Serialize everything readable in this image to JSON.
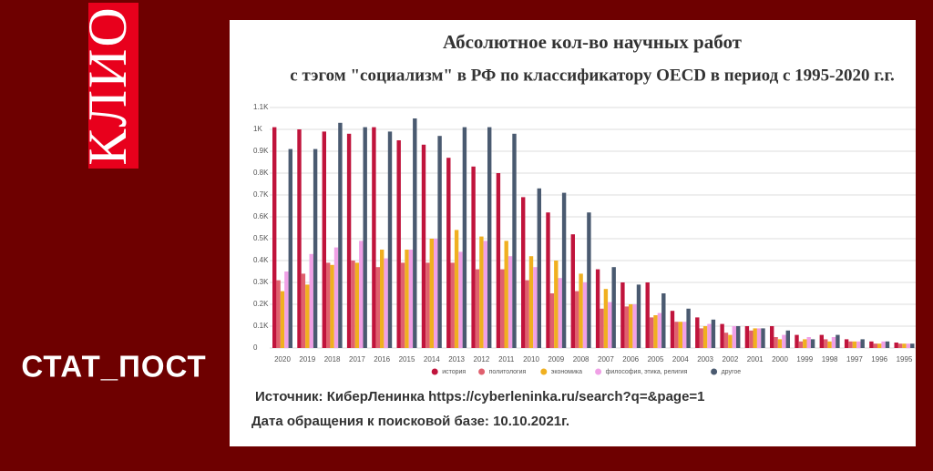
{
  "brand": {
    "logo": "КЛИО",
    "name": "СТАТ_ПОСТ"
  },
  "chart_data": {
    "type": "bar",
    "title": [
      "Абсолютное кол-во научных работ",
      "с тэгом \"социализм\" в РФ по классификатору OECD  в период с 1995-2020 г.г."
    ],
    "categories": [
      "2020",
      "2019",
      "2018",
      "2017",
      "2016",
      "2015",
      "2014",
      "2013",
      "2012",
      "2011",
      "2010",
      "2009",
      "2008",
      "2007",
      "2006",
      "2005",
      "2004",
      "2003",
      "2002",
      "2001",
      "2000",
      "1999",
      "1998",
      "1997",
      "1996",
      "1995"
    ],
    "series": [
      {
        "name": "история",
        "color": "#c0143c",
        "values": [
          1010,
          1000,
          990,
          980,
          1010,
          950,
          930,
          870,
          830,
          800,
          690,
          620,
          520,
          360,
          300,
          300,
          170,
          140,
          110,
          100,
          100,
          60,
          60,
          40,
          30,
          25
        ]
      },
      {
        "name": "политология",
        "color": "#e0606e",
        "values": [
          310,
          340,
          390,
          400,
          370,
          390,
          390,
          390,
          360,
          360,
          310,
          250,
          260,
          180,
          190,
          140,
          120,
          90,
          70,
          80,
          50,
          30,
          40,
          30,
          20,
          20
        ]
      },
      {
        "name": "экономика",
        "color": "#f0b020",
        "values": [
          260,
          290,
          380,
          390,
          450,
          450,
          500,
          540,
          510,
          490,
          420,
          400,
          340,
          270,
          200,
          150,
          120,
          100,
          60,
          90,
          40,
          40,
          30,
          30,
          20,
          20
        ]
      },
      {
        "name": "философия, этика, религия",
        "color": "#f0a0e6",
        "values": [
          350,
          430,
          460,
          490,
          410,
          450,
          500,
          440,
          490,
          420,
          370,
          320,
          300,
          210,
          200,
          160,
          120,
          110,
          100,
          90,
          60,
          50,
          50,
          30,
          30,
          20
        ]
      },
      {
        "name": "другое",
        "color": "#4a5a70",
        "values": [
          910,
          910,
          1030,
          1010,
          990,
          1050,
          970,
          1010,
          1010,
          980,
          730,
          710,
          620,
          370,
          290,
          250,
          180,
          130,
          100,
          90,
          80,
          40,
          60,
          40,
          30,
          20
        ]
      }
    ],
    "ylim": [
      0,
      1100
    ],
    "yticks": [
      0,
      {
        "value": 100,
        "label": "0.1K"
      },
      {
        "value": 200,
        "label": "0.2K"
      },
      {
        "value": 300,
        "label": "0.3K"
      },
      {
        "value": 400,
        "label": "0.4K"
      },
      {
        "value": 500,
        "label": "0.5K"
      },
      {
        "value": 600,
        "label": "0.6K"
      },
      {
        "value": 700,
        "label": "0.7K"
      },
      {
        "value": 800,
        "label": "0.8K"
      },
      {
        "value": 900,
        "label": "0.9K"
      },
      {
        "value": 1000,
        "label": "1K"
      },
      {
        "value": 1100,
        "label": "1.1K"
      }
    ],
    "grid": true,
    "legend": "bottom",
    "notes": [
      "Источник: КиберЛенинка https://cyberleninka.ru/search?q=&page=1",
      "Дата обращения к поисковой базе: 10.10.2021г."
    ]
  }
}
